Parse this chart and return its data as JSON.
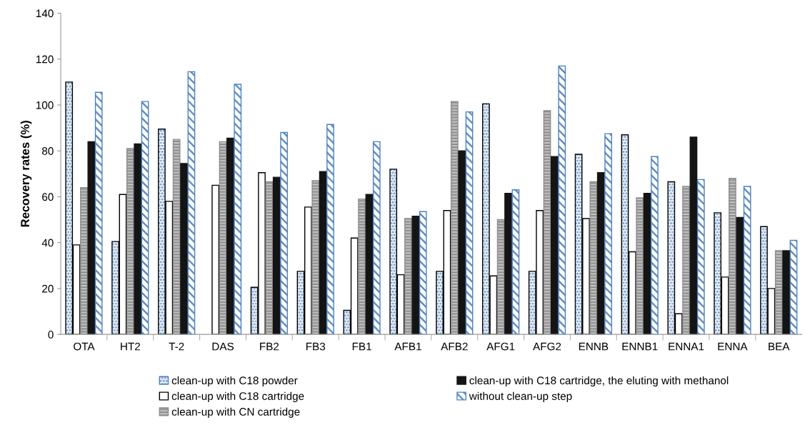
{
  "chart_data": {
    "type": "bar",
    "ylabel": "Recovery rates (%)",
    "categories": [
      "OTA",
      "HT2",
      "T-2",
      "DAS",
      "FB2",
      "FB3",
      "FB1",
      "AFB1",
      "AFB2",
      "AFG1",
      "AFG2",
      "ENNB",
      "ENNB1",
      "ENNA1",
      "ENNA",
      "BEA"
    ],
    "series": [
      {
        "name": "clean-up with C18 powder",
        "color": "#4f81bd",
        "values": [
          110,
          40.5,
          89.5,
          null,
          20.5,
          27.5,
          10.5,
          72,
          27.5,
          100.5,
          27.5,
          78.5,
          87,
          66.5,
          53,
          47
        ]
      },
      {
        "name": "clean-up with C18 cartridge",
        "color": "#ffffff",
        "values": [
          39,
          61,
          58,
          65,
          70.5,
          55.5,
          42,
          26,
          54,
          25.5,
          54,
          50.5,
          36,
          9,
          25,
          20
        ]
      },
      {
        "name": "clean-up with CN cartridge",
        "color": "#8c8c8c",
        "values": [
          64,
          81,
          85,
          84,
          66.5,
          67,
          59,
          50.5,
          101.5,
          50,
          97.5,
          66.5,
          59.5,
          64.5,
          68,
          36.5
        ]
      },
      {
        "name": "clean-up with C18 cartridge, the eluting with methanol",
        "color": "#141414",
        "values": [
          84,
          83,
          74.5,
          85.5,
          68.5,
          71,
          61,
          51.5,
          80,
          61.5,
          77.5,
          70.5,
          61.5,
          86,
          51,
          36.5
        ]
      },
      {
        "name": "without clean-up step",
        "color": "#4f81bd",
        "values": [
          105.5,
          101.5,
          114.5,
          109,
          88,
          91.5,
          84,
          53.5,
          97,
          63,
          117,
          87.5,
          77.5,
          67.5,
          64.5,
          41
        ]
      }
    ],
    "ylim": [
      0,
      140
    ],
    "yticks": [
      0,
      20,
      40,
      60,
      80,
      100,
      120,
      140
    ],
    "grid": false,
    "legend": "bottom"
  }
}
